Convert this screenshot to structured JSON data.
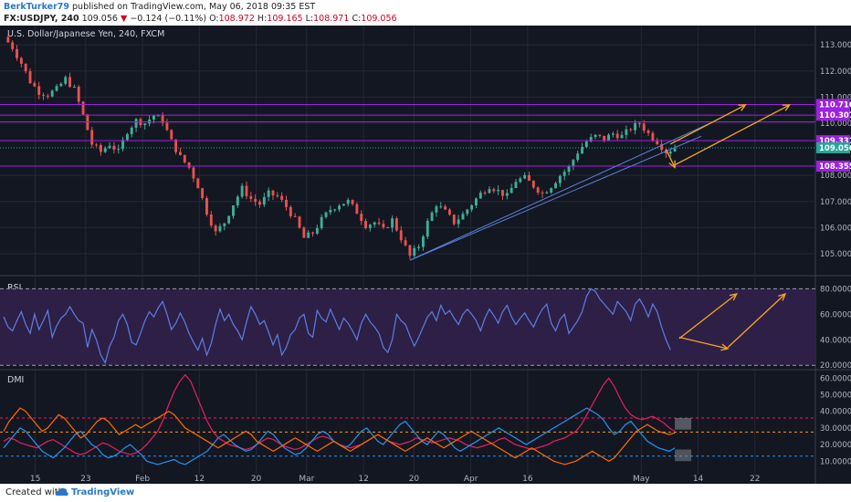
{
  "header": {
    "author": "BerkTurker79",
    "published_text": "published on TradingView.com, May 06, 2018 09:35 EST",
    "symbol": "FX:USDJPY, 240",
    "last": "109.056",
    "change_arrow": "▼",
    "change": "−0.124 (−0.11%)",
    "o_label": "O:",
    "o_value": "108.972",
    "h_label": "H:",
    "h_value": "109.165",
    "l_label": "L:",
    "l_value": "108.971",
    "c_label": "C:",
    "c_value": "109.056"
  },
  "footer": {
    "created_with": "Created with",
    "brand": "TradingView"
  },
  "colors": {
    "background": "#131722",
    "grid": "#242838",
    "up": "#3fae97",
    "down": "#e8524f",
    "level_line": "#9d21e0",
    "level_label": "#9d21e0",
    "current_price": "#26a69a",
    "trendline": "#5c7fd6",
    "arrow": "#f5a623",
    "rsi": "#5d7fe0",
    "rsi_band": "#2e1f47",
    "dmi_plus": "#2196f3",
    "dmi_minus": "#ff6d00",
    "adx": "#e91e63",
    "dmi_level_red": "#e91e63",
    "dmi_level_orange": "#ff9800",
    "dmi_level_blue": "#2196f3"
  },
  "chart_data": [
    {
      "type": "candlestick",
      "title": "U.S. Dollar/Japanese Yen, 240, FXCM",
      "ylim": [
        104.3,
        113.6
      ],
      "y_ticks": [
        "113.000",
        "112.000",
        "111.000",
        "110.000",
        "108.000",
        "107.000",
        "106.000",
        "105.000"
      ],
      "x_ticks": [
        "15",
        "23",
        "Feb",
        "12",
        "20",
        "Mar",
        "12",
        "20",
        "Apr",
        "16",
        "May",
        "14",
        "22"
      ],
      "price_path": [
        [
          0,
          113.3
        ],
        [
          2,
          112.9
        ],
        [
          4,
          112.3
        ],
        [
          6,
          111.6
        ],
        [
          8,
          111.2
        ],
        [
          10,
          111.1
        ],
        [
          12,
          111.3
        ],
        [
          14,
          111.7
        ],
        [
          16,
          111.3
        ],
        [
          18,
          110.3
        ],
        [
          20,
          109.2
        ],
        [
          22,
          108.9
        ],
        [
          24,
          109.2
        ],
        [
          26,
          108.9
        ],
        [
          28,
          109.7
        ],
        [
          30,
          110.1
        ],
        [
          32,
          110.0
        ],
        [
          34,
          110.3
        ],
        [
          36,
          110.1
        ],
        [
          38,
          109.3
        ],
        [
          40,
          108.7
        ],
        [
          42,
          108.3
        ],
        [
          44,
          107.6
        ],
        [
          46,
          106.6
        ],
        [
          48,
          105.8
        ],
        [
          50,
          106.2
        ],
        [
          52,
          106.9
        ],
        [
          54,
          107.5
        ],
        [
          56,
          107.1
        ],
        [
          58,
          106.9
        ],
        [
          60,
          107.3
        ],
        [
          62,
          107.2
        ],
        [
          64,
          106.8
        ],
        [
          66,
          106.3
        ],
        [
          68,
          105.6
        ],
        [
          70,
          105.8
        ],
        [
          72,
          106.3
        ],
        [
          74,
          106.7
        ],
        [
          76,
          106.9
        ],
        [
          78,
          107.0
        ],
        [
          80,
          106.6
        ],
        [
          82,
          106.1
        ],
        [
          84,
          106.2
        ],
        [
          86,
          105.9
        ],
        [
          88,
          106.3
        ],
        [
          90,
          105.6
        ],
        [
          92,
          104.9
        ],
        [
          94,
          105.3
        ],
        [
          96,
          106.2
        ],
        [
          98,
          106.9
        ],
        [
          100,
          106.6
        ],
        [
          102,
          106.2
        ],
        [
          104,
          106.5
        ],
        [
          106,
          106.9
        ],
        [
          108,
          107.3
        ],
        [
          110,
          107.6
        ],
        [
          112,
          107.4
        ],
        [
          114,
          107.2
        ],
        [
          116,
          107.8
        ],
        [
          118,
          107.9
        ],
        [
          120,
          107.6
        ],
        [
          122,
          107.3
        ],
        [
          124,
          107.6
        ],
        [
          126,
          108.0
        ],
        [
          128,
          108.3
        ],
        [
          130,
          108.9
        ],
        [
          132,
          109.3
        ],
        [
          134,
          109.5
        ],
        [
          136,
          109.4
        ],
        [
          138,
          109.6
        ],
        [
          140,
          109.5
        ],
        [
          142,
          109.8
        ],
        [
          144,
          110.0
        ],
        [
          146,
          109.6
        ],
        [
          148,
          109.3
        ],
        [
          150,
          108.9
        ],
        [
          152,
          109.06
        ]
      ],
      "levels": [
        {
          "label": "110.716",
          "value": 110.716
        },
        {
          "label": "110.307",
          "value": 110.307
        },
        {
          "label": "109.331",
          "value": 109.331
        },
        {
          "label": "108.355",
          "value": 108.355
        }
      ],
      "extra_level": 110.05,
      "current_price": {
        "label": "109.056",
        "value": 109.056
      },
      "trendlines": [
        {
          "from": [
            92,
            104.75
          ],
          "to": [
            160,
            110.0
          ]
        },
        {
          "from": [
            92,
            104.75
          ],
          "to": [
            158,
            109.5
          ]
        }
      ],
      "arrows": [
        {
          "from": [
            150,
            109.0
          ],
          "to": [
            152,
            108.3
          ]
        },
        {
          "from": [
            152,
            108.4
          ],
          "to": [
            178,
            110.7
          ]
        },
        {
          "from": [
            151,
            109.2
          ],
          "to": [
            168,
            110.7
          ]
        }
      ]
    },
    {
      "type": "line",
      "title": "RSI",
      "ylim": [
        18,
        86
      ],
      "y_ticks": [
        "80.0000",
        "60.0000",
        "40.0000",
        "20.0000"
      ],
      "band": [
        20,
        80
      ],
      "values": [
        58,
        50,
        47,
        55,
        62,
        52,
        45,
        60,
        48,
        55,
        63,
        42,
        51,
        57,
        60,
        66,
        60,
        55,
        53,
        34,
        48,
        40,
        28,
        22,
        35,
        42,
        55,
        60,
        52,
        38,
        36,
        45,
        55,
        62,
        58,
        65,
        70,
        60,
        48,
        53,
        61,
        54,
        45,
        38,
        32,
        41,
        28,
        37,
        52,
        64,
        55,
        60,
        52,
        47,
        40,
        54,
        66,
        60,
        52,
        55,
        46,
        36,
        44,
        28,
        34,
        44,
        48,
        57,
        60,
        45,
        42,
        63,
        57,
        54,
        64,
        56,
        48,
        57,
        53,
        47,
        40,
        53,
        60,
        54,
        50,
        45,
        34,
        30,
        40,
        60,
        55,
        52,
        43,
        35,
        42,
        50,
        58,
        62,
        55,
        67,
        60,
        63,
        57,
        52,
        60,
        64,
        60,
        55,
        47,
        57,
        64,
        59,
        53,
        62,
        67,
        58,
        52,
        57,
        61,
        55,
        50,
        58,
        64,
        68,
        53,
        47,
        56,
        60,
        45,
        50,
        55,
        62,
        74,
        80,
        78,
        72,
        68,
        64,
        60,
        70,
        66,
        62,
        55,
        68,
        72,
        66,
        58,
        68,
        62,
        50,
        40,
        32
      ],
      "arrows": [
        {
          "from": [
            153,
            42
          ],
          "to": [
            164,
            33
          ]
        },
        {
          "from": [
            153,
            41
          ],
          "to": [
            166,
            76
          ]
        },
        {
          "from": [
            164,
            34
          ],
          "to": [
            177,
            76
          ]
        }
      ]
    },
    {
      "type": "line",
      "title": "DMI",
      "ylim": [
        3,
        64
      ],
      "y_ticks": [
        "60.0000",
        "50.0000",
        "40.0000",
        "30.0000",
        "20.0000",
        "10.0000"
      ],
      "levels": [
        {
          "value": 36,
          "color_key": "dmi_level_red"
        },
        {
          "value": 27.5,
          "color_key": "dmi_level_orange"
        },
        {
          "value": 13,
          "color_key": "dmi_level_blue"
        }
      ],
      "series": [
        {
          "key": "adx",
          "values": [
            22,
            24,
            23,
            21,
            20,
            19,
            18,
            20,
            22,
            23,
            21,
            19,
            17,
            15,
            14,
            15,
            17,
            19,
            21,
            20,
            18,
            16,
            15,
            14,
            15,
            17,
            20,
            24,
            28,
            35,
            44,
            52,
            58,
            62,
            58,
            50,
            42,
            34,
            28,
            24,
            22,
            20,
            19,
            18,
            17,
            18,
            20,
            22,
            24,
            23,
            21,
            19,
            18,
            17,
            18,
            20,
            22,
            24,
            25,
            24,
            22,
            20,
            19,
            18,
            19,
            20,
            22,
            24,
            26,
            24,
            22,
            21,
            20,
            21,
            22,
            24,
            23,
            22,
            21,
            22,
            23,
            24,
            23,
            22,
            20,
            19,
            18,
            19,
            20,
            21,
            23,
            24,
            22,
            20,
            19,
            18,
            17,
            18,
            19,
            20,
            22,
            23,
            24,
            26,
            28,
            32,
            38,
            44,
            50,
            56,
            60,
            55,
            48,
            42,
            38,
            36,
            35,
            36,
            37,
            35,
            33,
            30,
            28
          ]
        },
        {
          "key": "dmi_plus",
          "values": [
            18,
            22,
            26,
            30,
            28,
            24,
            20,
            16,
            14,
            12,
            15,
            18,
            22,
            26,
            28,
            24,
            20,
            18,
            14,
            12,
            13,
            15,
            18,
            20,
            17,
            14,
            10,
            9,
            8,
            9,
            10,
            11,
            9,
            8,
            10,
            12,
            14,
            16,
            20,
            24,
            26,
            23,
            20,
            18,
            16,
            17,
            20,
            24,
            28,
            26,
            22,
            18,
            16,
            14,
            15,
            18,
            22,
            26,
            28,
            26,
            22,
            20,
            18,
            20,
            24,
            28,
            30,
            26,
            22,
            20,
            24,
            28,
            32,
            34,
            30,
            26,
            22,
            20,
            24,
            28,
            26,
            22,
            18,
            16,
            18,
            20,
            22,
            24,
            26,
            28,
            30,
            28,
            26,
            24,
            22,
            20,
            22,
            24,
            26,
            28,
            30,
            32,
            34,
            36,
            38,
            40,
            42,
            40,
            38,
            35,
            30,
            26,
            28,
            32,
            34,
            30,
            26,
            22,
            20,
            18,
            17,
            16,
            18
          ]
        },
        {
          "key": "dmi_minus",
          "values": [
            28,
            34,
            38,
            42,
            40,
            36,
            32,
            28,
            30,
            34,
            38,
            36,
            32,
            28,
            24,
            26,
            30,
            34,
            36,
            34,
            30,
            26,
            28,
            30,
            32,
            30,
            32,
            34,
            36,
            38,
            40,
            38,
            34,
            30,
            28,
            26,
            24,
            22,
            20,
            18,
            20,
            22,
            24,
            26,
            28,
            26,
            22,
            20,
            18,
            16,
            18,
            20,
            22,
            24,
            22,
            20,
            18,
            16,
            18,
            20,
            22,
            20,
            18,
            16,
            18,
            20,
            22,
            24,
            26,
            24,
            22,
            20,
            18,
            16,
            18,
            20,
            22,
            24,
            22,
            20,
            18,
            20,
            22,
            24,
            26,
            28,
            26,
            24,
            22,
            20,
            18,
            16,
            14,
            12,
            14,
            16,
            18,
            16,
            14,
            12,
            10,
            9,
            8,
            9,
            10,
            12,
            14,
            16,
            14,
            12,
            10,
            12,
            16,
            20,
            24,
            28,
            30,
            32,
            30,
            28,
            27,
            26,
            27
          ]
        }
      ]
    }
  ]
}
